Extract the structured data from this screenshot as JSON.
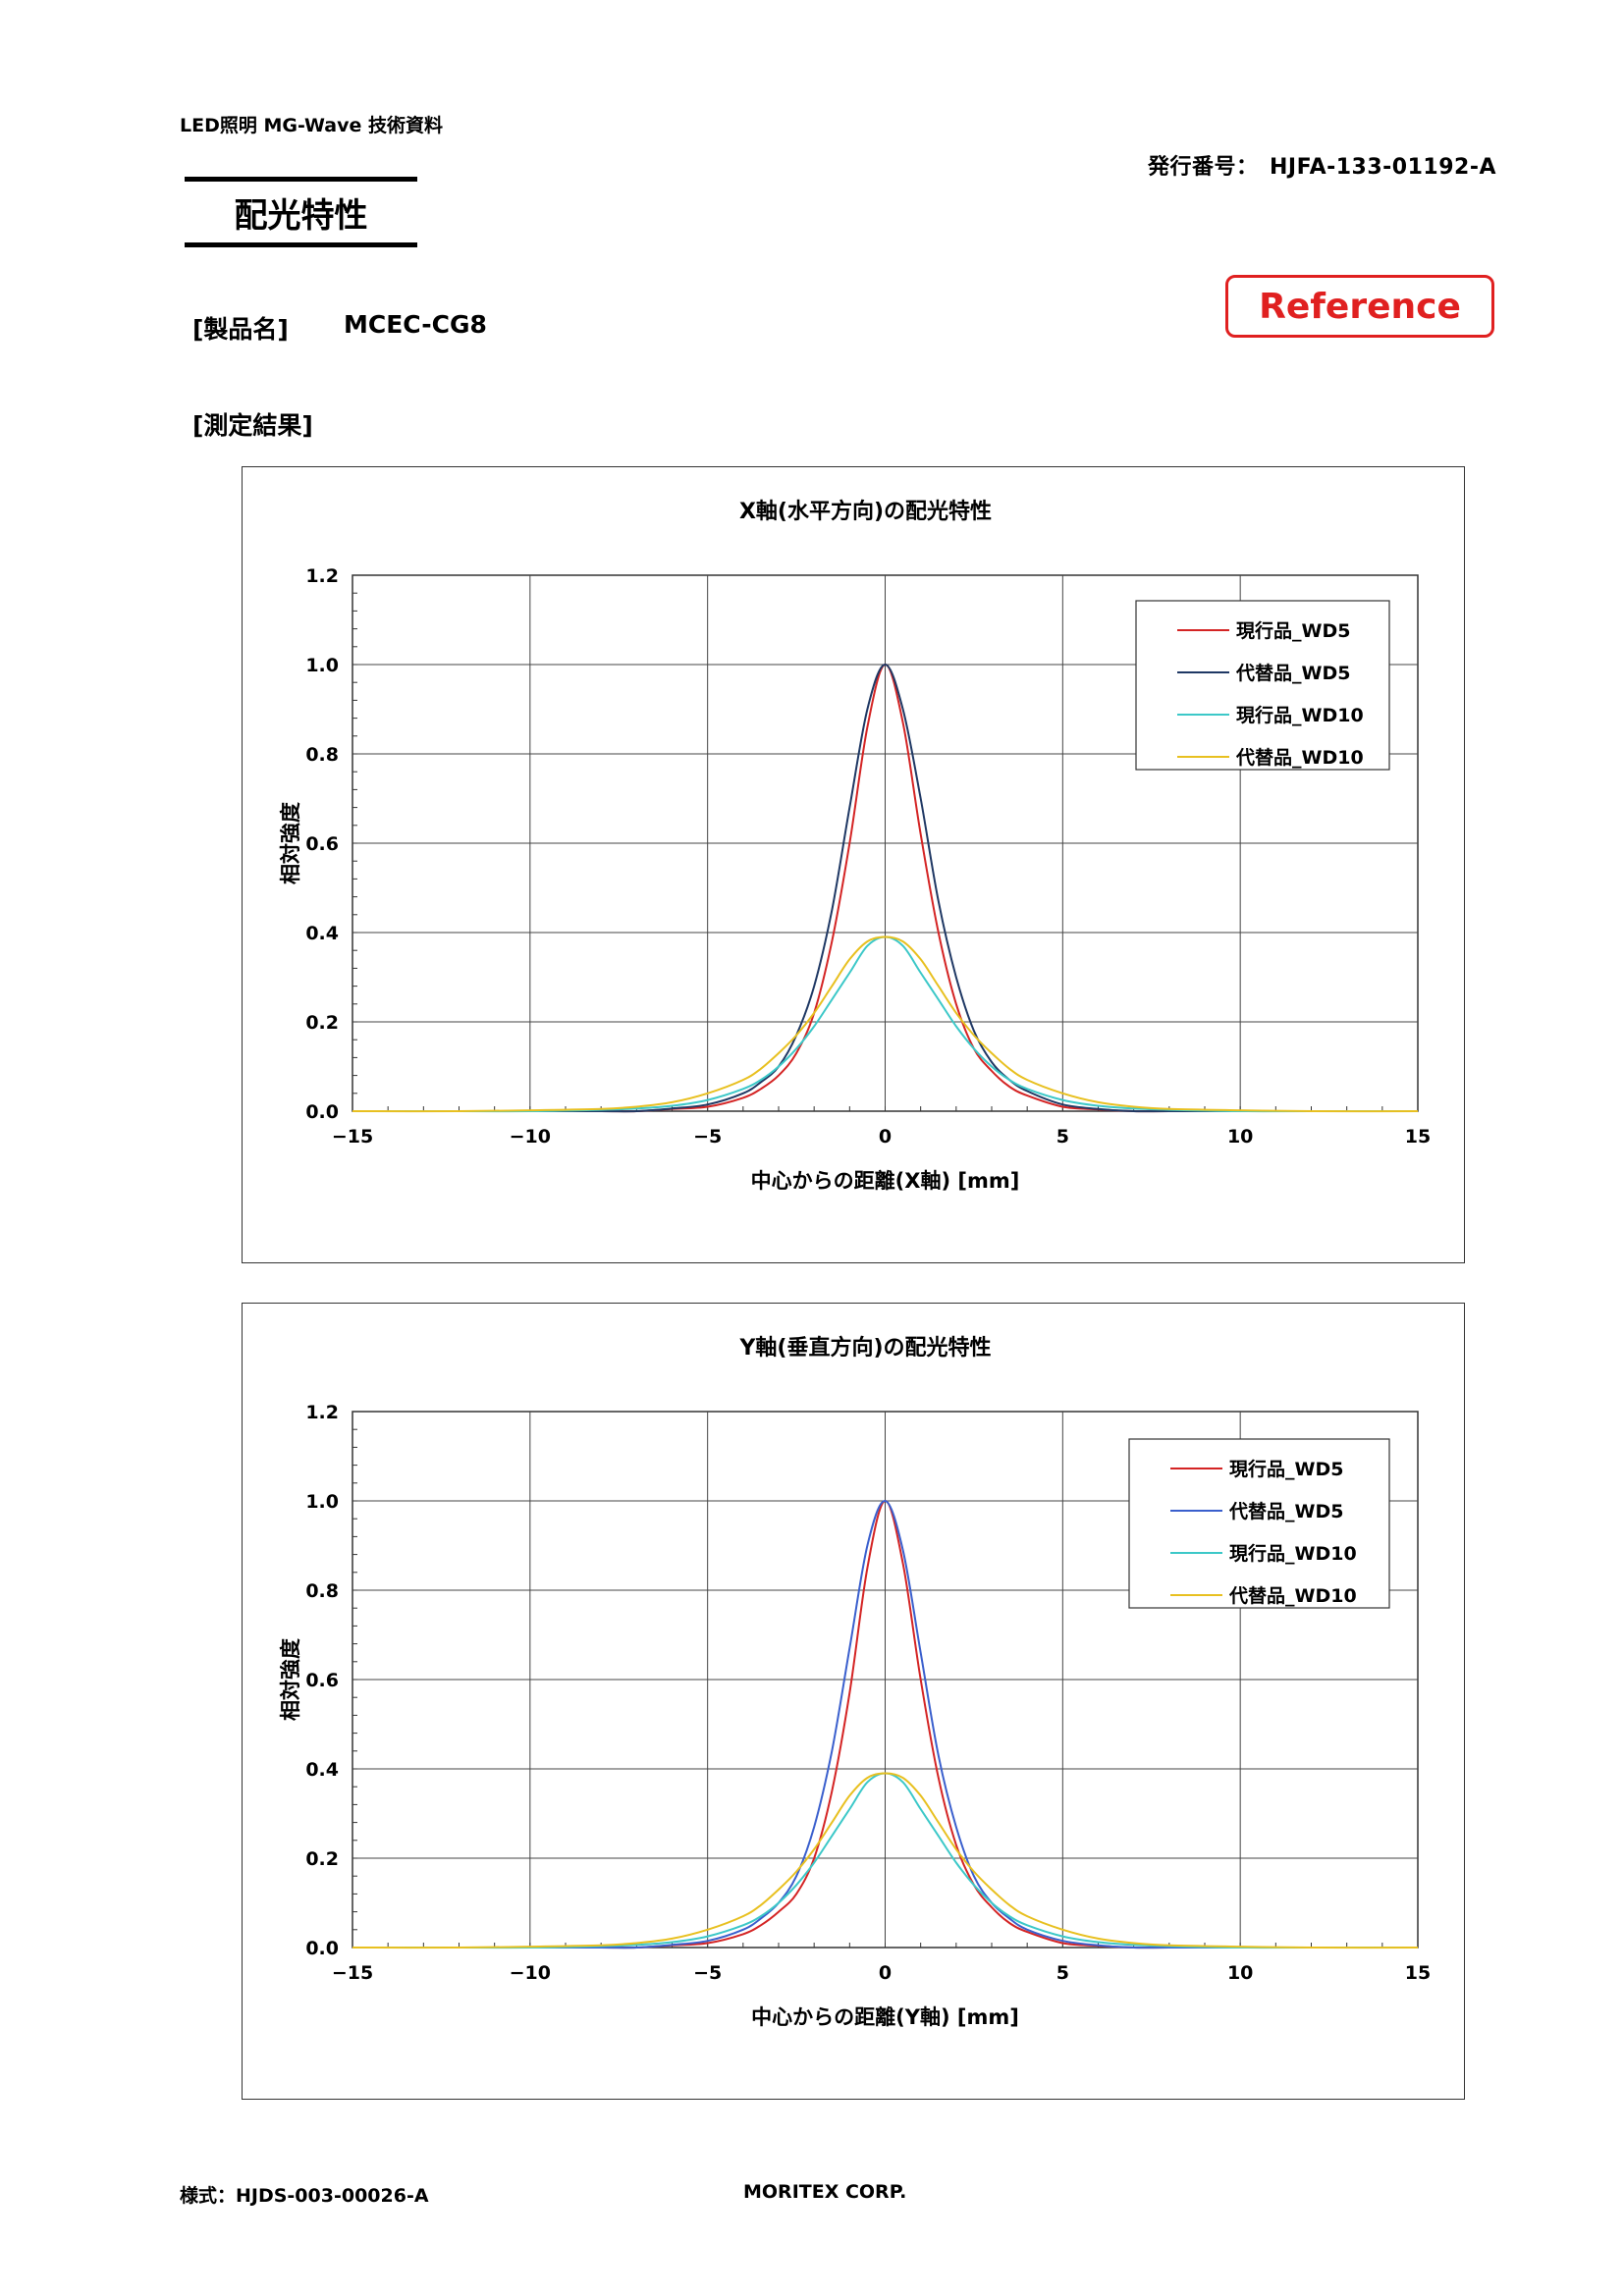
{
  "header": {
    "doc_series": "LED照明 MG-Wave 技術資料",
    "issue_number": "発行番号：　HJFA-133-01192-A",
    "page_title": "配光特性",
    "reference_stamp": "Reference"
  },
  "product": {
    "label": "[製品名]",
    "value": "MCEC-CG8"
  },
  "measurement_label": "[測定結果]",
  "colors": {
    "current_wd5": "#d42424",
    "alt_wd5_x": "#1f3864",
    "alt_wd5_y": "#3a5fcd",
    "current_wd10": "#3cc8c8",
    "alt_wd10": "#e8c020",
    "reference_red": "#e02020"
  },
  "chart_data": [
    {
      "type": "line",
      "title": "X軸(水平方向)の配光特性",
      "xlabel": "中心からの距離(X軸) [mm]",
      "ylabel": "相対強度",
      "xlim": [
        -15,
        15
      ],
      "ylim": [
        0,
        1.2
      ],
      "xticks": [
        "−15",
        "−10",
        "−5",
        "0",
        "5",
        "10",
        "15"
      ],
      "yticks": [
        "0.0",
        "0.2",
        "0.4",
        "0.6",
        "0.8",
        "1.0",
        "1.2"
      ],
      "grid": true,
      "legend_position": "top-right",
      "x": [
        -15,
        -12,
        -10,
        -8,
        -7,
        -6,
        -5,
        -4,
        -3.5,
        -3,
        -2.5,
        -2,
        -1.5,
        -1,
        -0.5,
        0,
        0.5,
        1,
        1.5,
        2,
        2.5,
        3,
        3.5,
        4,
        5,
        6,
        7,
        8,
        10,
        12,
        15
      ],
      "series": [
        {
          "name": "現行品_WD5",
          "color": "#d42424",
          "values": [
            0.0,
            0.0,
            0.0,
            0.0,
            0.0,
            0.005,
            0.01,
            0.03,
            0.05,
            0.08,
            0.13,
            0.22,
            0.38,
            0.6,
            0.86,
            1.0,
            0.87,
            0.62,
            0.4,
            0.24,
            0.14,
            0.09,
            0.055,
            0.035,
            0.01,
            0.004,
            0.0,
            0.0,
            0.0,
            0.0,
            0.0
          ]
        },
        {
          "name": "代替品_WD5",
          "color": "#1f3864",
          "values": [
            0.0,
            0.0,
            0.0,
            0.0,
            0.0,
            0.006,
            0.015,
            0.04,
            0.065,
            0.1,
            0.17,
            0.28,
            0.45,
            0.68,
            0.9,
            1.0,
            0.9,
            0.7,
            0.47,
            0.3,
            0.18,
            0.11,
            0.07,
            0.045,
            0.015,
            0.005,
            0.0,
            0.0,
            0.0,
            0.0,
            0.0
          ]
        },
        {
          "name": "現行品_WD10",
          "color": "#3cc8c8",
          "values": [
            0.0,
            0.0,
            0.0,
            0.003,
            0.006,
            0.012,
            0.025,
            0.05,
            0.07,
            0.1,
            0.14,
            0.19,
            0.25,
            0.31,
            0.37,
            0.39,
            0.37,
            0.31,
            0.25,
            0.19,
            0.14,
            0.1,
            0.07,
            0.05,
            0.025,
            0.012,
            0.006,
            0.003,
            0.0,
            0.0,
            0.0
          ]
        },
        {
          "name": "代替品_WD10",
          "color": "#e8c020",
          "values": [
            0.0,
            0.0,
            0.002,
            0.005,
            0.01,
            0.02,
            0.04,
            0.07,
            0.095,
            0.13,
            0.17,
            0.22,
            0.28,
            0.34,
            0.38,
            0.39,
            0.38,
            0.34,
            0.28,
            0.22,
            0.17,
            0.13,
            0.095,
            0.07,
            0.04,
            0.02,
            0.01,
            0.005,
            0.002,
            0.0,
            0.0
          ]
        }
      ]
    },
    {
      "type": "line",
      "title": "Y軸(垂直方向)の配光特性",
      "xlabel": "中心からの距離(Y軸) [mm]",
      "ylabel": "相対強度",
      "xlim": [
        -15,
        15
      ],
      "ylim": [
        0,
        1.2
      ],
      "xticks": [
        "−15",
        "−10",
        "−5",
        "0",
        "5",
        "10",
        "15"
      ],
      "yticks": [
        "0.0",
        "0.2",
        "0.4",
        "0.6",
        "0.8",
        "1.0",
        "1.2"
      ],
      "grid": true,
      "legend_position": "top-right",
      "x": [
        -15,
        -12,
        -10,
        -8,
        -7,
        -6,
        -5,
        -4,
        -3.5,
        -3,
        -2.5,
        -2,
        -1.5,
        -1,
        -0.5,
        0,
        0.5,
        1,
        1.5,
        2,
        2.5,
        3,
        3.5,
        4,
        5,
        6,
        7,
        8,
        10,
        12,
        15
      ],
      "series": [
        {
          "name": "現行品_WD5",
          "color": "#d42424",
          "values": [
            0.0,
            0.0,
            0.0,
            0.0,
            0.0,
            0.005,
            0.01,
            0.03,
            0.05,
            0.08,
            0.12,
            0.2,
            0.35,
            0.57,
            0.85,
            1.0,
            0.86,
            0.6,
            0.38,
            0.23,
            0.14,
            0.09,
            0.055,
            0.035,
            0.01,
            0.004,
            0.0,
            0.0,
            0.0,
            0.0,
            0.0
          ]
        },
        {
          "name": "代替品_WD5",
          "color": "#3a5fcd",
          "values": [
            0.0,
            0.0,
            0.0,
            0.0,
            0.0,
            0.006,
            0.015,
            0.04,
            0.065,
            0.1,
            0.16,
            0.27,
            0.44,
            0.67,
            0.9,
            1.0,
            0.89,
            0.66,
            0.43,
            0.27,
            0.16,
            0.1,
            0.065,
            0.04,
            0.015,
            0.005,
            0.0,
            0.0,
            0.0,
            0.0,
            0.0
          ]
        },
        {
          "name": "現行品_WD10",
          "color": "#3cc8c8",
          "values": [
            0.0,
            0.0,
            0.0,
            0.003,
            0.006,
            0.012,
            0.025,
            0.05,
            0.07,
            0.1,
            0.14,
            0.19,
            0.25,
            0.31,
            0.37,
            0.39,
            0.37,
            0.31,
            0.25,
            0.19,
            0.14,
            0.1,
            0.07,
            0.05,
            0.025,
            0.012,
            0.006,
            0.003,
            0.0,
            0.0,
            0.0
          ]
        },
        {
          "name": "代替品_WD10",
          "color": "#e8c020",
          "values": [
            0.0,
            0.0,
            0.002,
            0.005,
            0.01,
            0.02,
            0.04,
            0.07,
            0.095,
            0.13,
            0.17,
            0.22,
            0.28,
            0.34,
            0.38,
            0.39,
            0.38,
            0.34,
            0.28,
            0.22,
            0.17,
            0.13,
            0.095,
            0.07,
            0.04,
            0.02,
            0.01,
            0.005,
            0.002,
            0.0,
            0.0
          ]
        }
      ]
    }
  ],
  "footer": {
    "form_number": "様式：HJDS-003-00026-A",
    "company": "MORITEX CORP."
  }
}
